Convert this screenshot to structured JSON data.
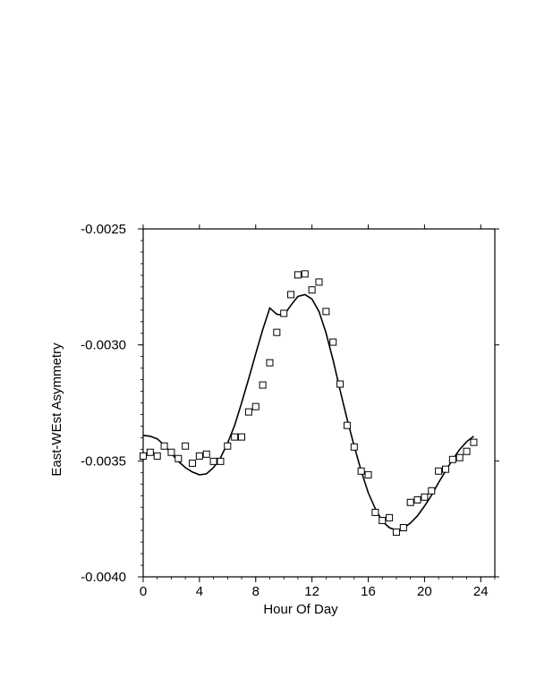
{
  "chart_data": {
    "type": "scatter",
    "xlabel": "Hour Of Day",
    "ylabel": "East-WEst Asymmetry",
    "xlim": [
      0,
      25
    ],
    "ylim": [
      -0.004,
      -0.0025
    ],
    "xticks": [
      0,
      4,
      8,
      12,
      16,
      20,
      24
    ],
    "xtick_labels": [
      "0",
      "4",
      "8",
      "12",
      "16",
      "20",
      "24"
    ],
    "yticks": [
      -0.004,
      -0.0035,
      -0.003,
      -0.0025
    ],
    "ytick_labels": [
      "-0.0040",
      "-0.0035",
      "-0.0030",
      "-0.0025"
    ],
    "grid": false,
    "series": [
      {
        "kind": "points",
        "marker": "open-square",
        "x": [
          0.0,
          0.5,
          1.0,
          1.5,
          2.0,
          2.5,
          3.0,
          3.5,
          4.0,
          4.5,
          5.0,
          5.5,
          6.0,
          6.5,
          7.0,
          7.5,
          8.0,
          8.5,
          9.0,
          9.5,
          10.0,
          10.5,
          11.0,
          11.5,
          12.0,
          12.5,
          13.0,
          13.5,
          14.0,
          14.5,
          15.0,
          15.5,
          16.0,
          16.5,
          17.0,
          17.5,
          18.0,
          18.5,
          19.0,
          19.5,
          20.0,
          20.5,
          21.0,
          21.5,
          22.0,
          22.5,
          23.0,
          23.5
        ],
        "y": [
          -0.003479,
          -0.003463,
          -0.003479,
          -0.003436,
          -0.003463,
          -0.00349,
          -0.003436,
          -0.00351,
          -0.003479,
          -0.003471,
          -0.003502,
          -0.003502,
          -0.003436,
          -0.003397,
          -0.003397,
          -0.003289,
          -0.003266,
          -0.003173,
          -0.003077,
          -0.002946,
          -0.002864,
          -0.002783,
          -0.002698,
          -0.002694,
          -0.002763,
          -0.002729,
          -0.002856,
          -0.002988,
          -0.003169,
          -0.003347,
          -0.00344,
          -0.003544,
          -0.00356,
          -0.003722,
          -0.003757,
          -0.003745,
          -0.003807,
          -0.003788,
          -0.003679,
          -0.003668,
          -0.003656,
          -0.003629,
          -0.003544,
          -0.003536,
          -0.003494,
          -0.003486,
          -0.003459,
          -0.00342
        ]
      },
      {
        "kind": "curve",
        "x": [
          0,
          0.5,
          1,
          1.5,
          2,
          2.5,
          3,
          3.5,
          4,
          4.5,
          5,
          5.5,
          6,
          6.5,
          7,
          7.5,
          8,
          8.5,
          9,
          9.5,
          10,
          10.5,
          11,
          11.5,
          12,
          12.5,
          13,
          13.5,
          14,
          14.5,
          15,
          15.5,
          16,
          16.5,
          17,
          17.5,
          18,
          18.5,
          19,
          19.5,
          20,
          20.5,
          21,
          21.5,
          22,
          22.5,
          23,
          23.5
        ],
        "y": [
          -0.00339,
          -0.003394,
          -0.003405,
          -0.003432,
          -0.003467,
          -0.003502,
          -0.003529,
          -0.003548,
          -0.00356,
          -0.003556,
          -0.003529,
          -0.003486,
          -0.003424,
          -0.003347,
          -0.00325,
          -0.003146,
          -0.003038,
          -0.002934,
          -0.002841,
          -0.002868,
          -0.002872,
          -0.002829,
          -0.002791,
          -0.002783,
          -0.002802,
          -0.002856,
          -0.002949,
          -0.003065,
          -0.003196,
          -0.00332,
          -0.003436,
          -0.003544,
          -0.003637,
          -0.003706,
          -0.00376,
          -0.003788,
          -0.003799,
          -0.003791,
          -0.003768,
          -0.003737,
          -0.003695,
          -0.003648,
          -0.003594,
          -0.003544,
          -0.003494,
          -0.003451,
          -0.003417,
          -0.003394
        ]
      }
    ]
  }
}
